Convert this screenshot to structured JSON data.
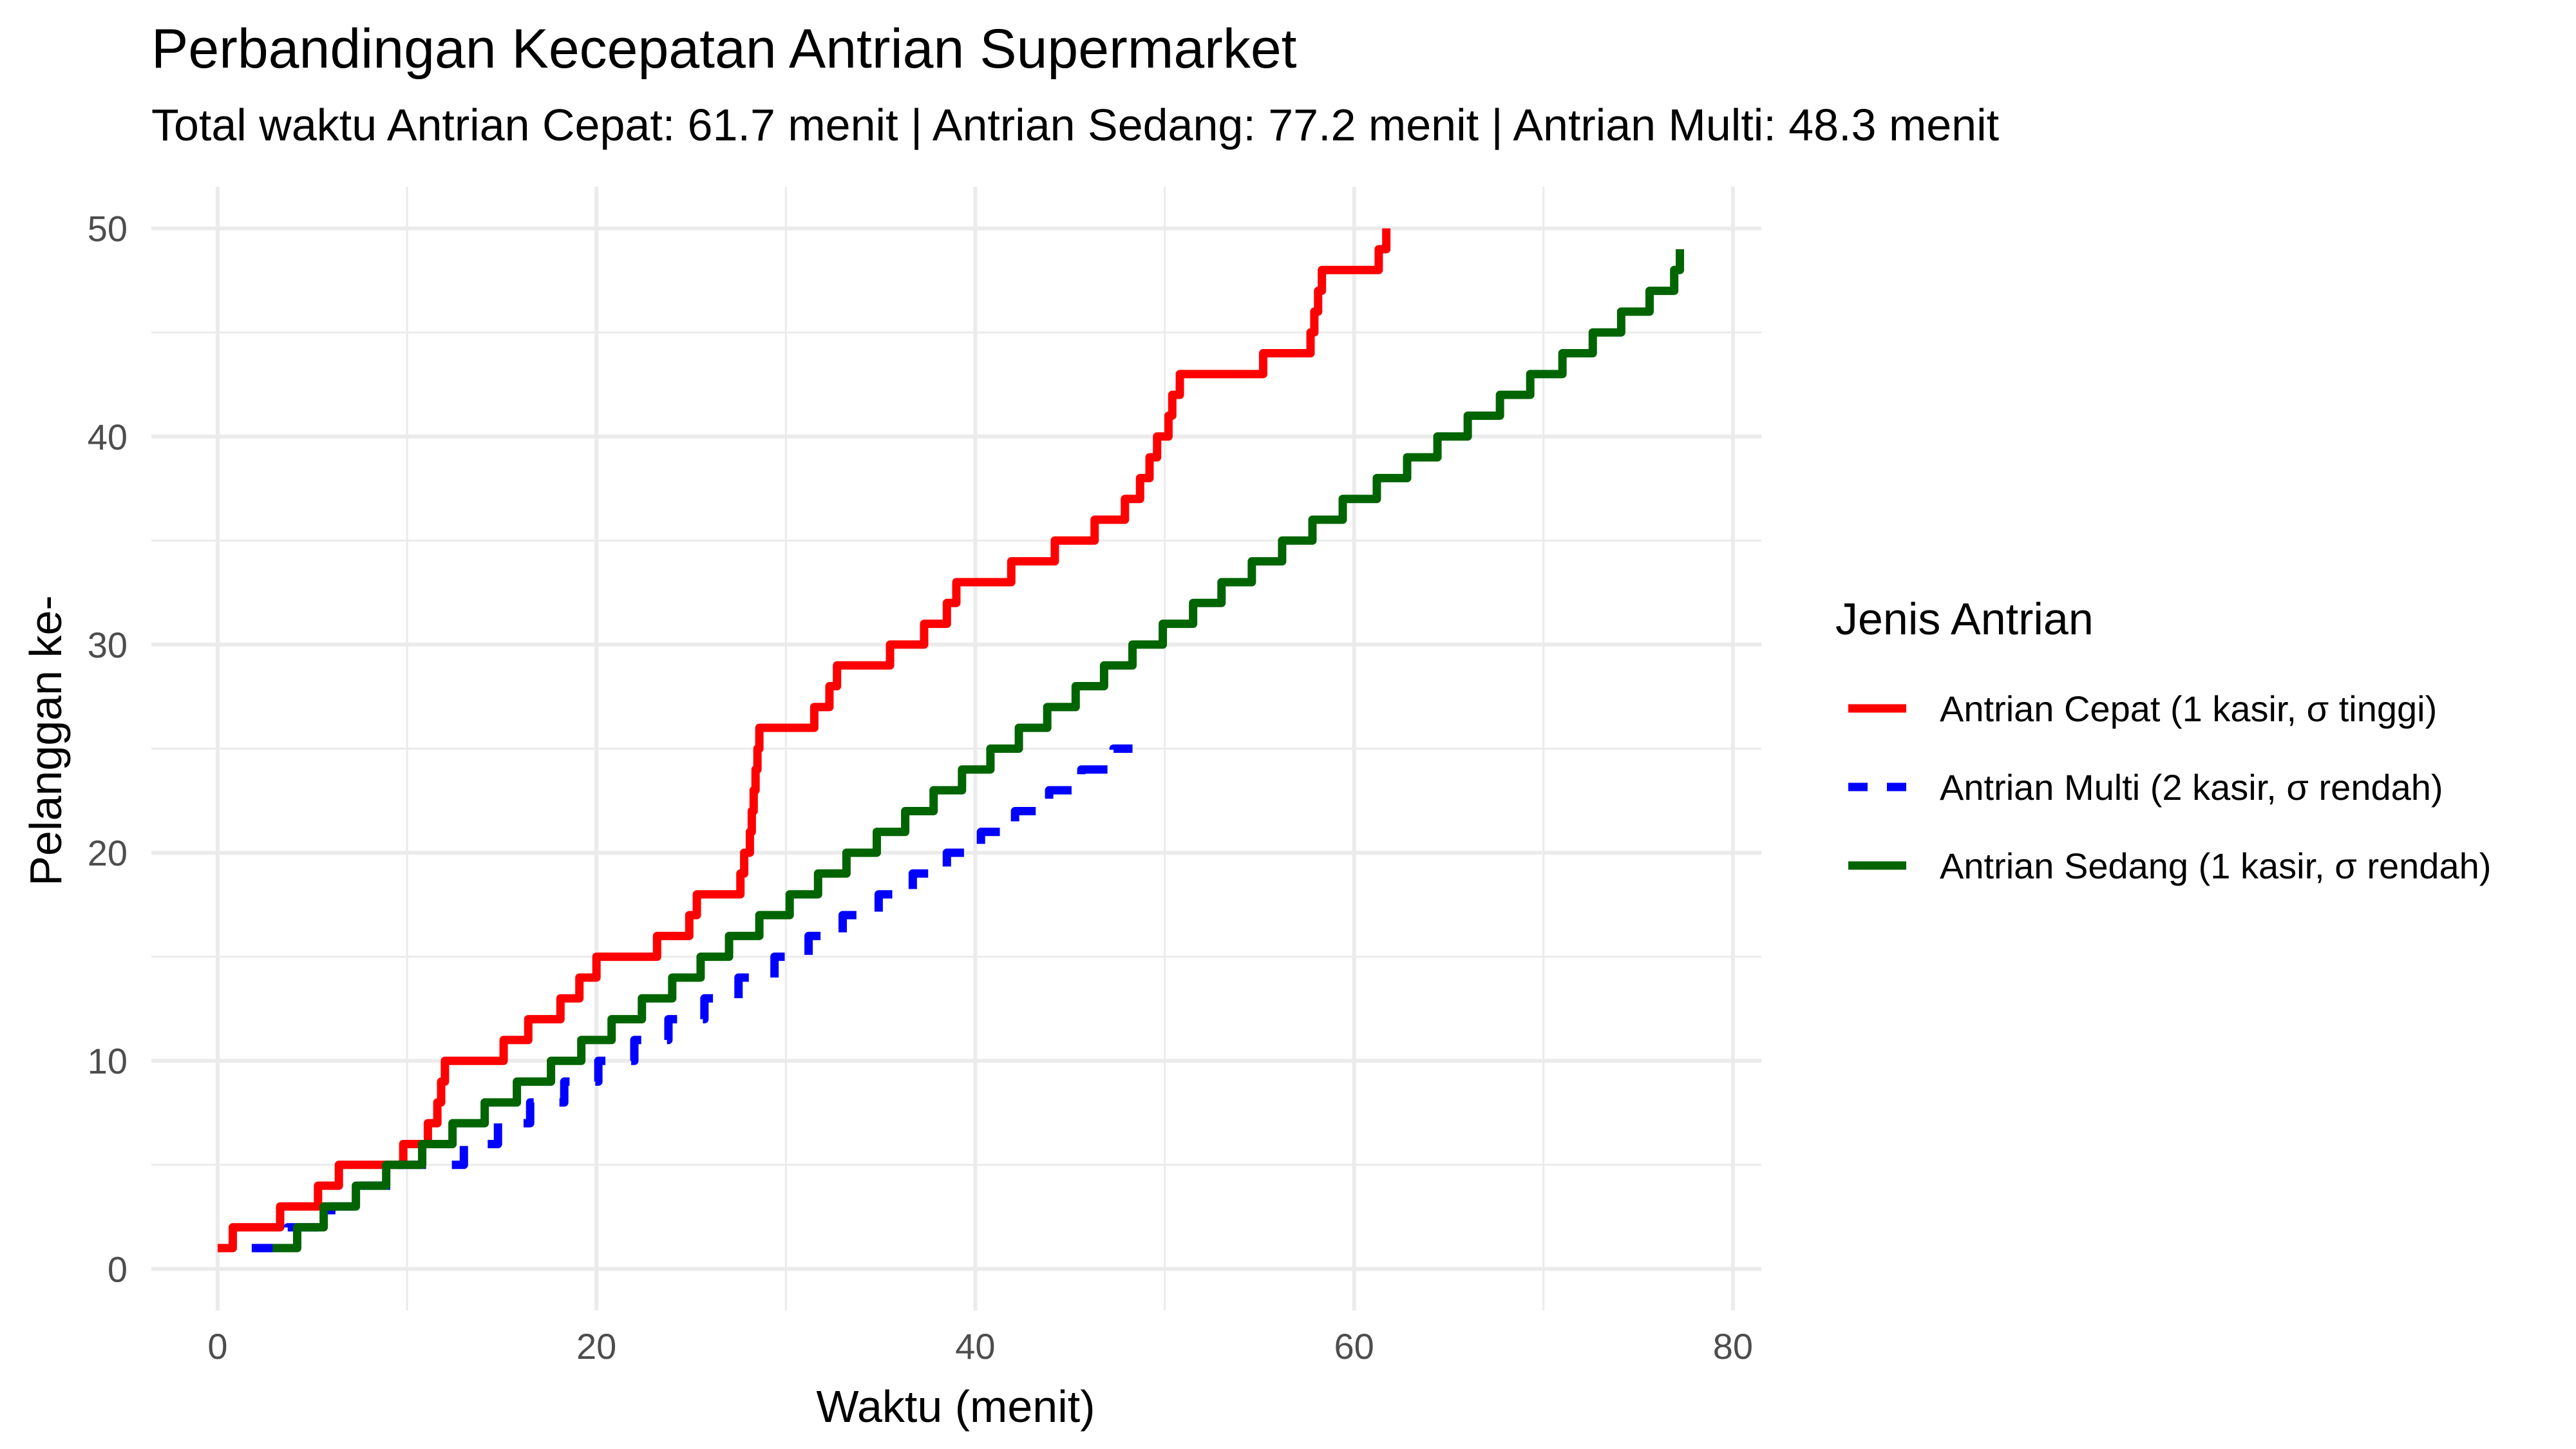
{
  "chart_data": {
    "type": "line",
    "title": "Perbandingan Kecepatan Antrian Supermarket",
    "subtitle": "Total waktu Antrian Cepat: 61.7 menit | Antrian Sedang: 77.2 menit | Antrian Multi: 48.3 menit",
    "xlabel": "Waktu (menit)",
    "ylabel": "Pelanggan ke-",
    "xlim": [
      -3.5,
      81.5
    ],
    "ylim": [
      -2,
      52
    ],
    "x_ticks": [
      "0",
      "20",
      "40",
      "60",
      "80"
    ],
    "y_ticks": [
      "0",
      "10",
      "20",
      "30",
      "40",
      "50"
    ],
    "grid": true,
    "legend": {
      "title": "Jenis Antrian",
      "position": "right",
      "entries": [
        "Antrian Cepat (1 kasir, σ tinggi)",
        "Antrian Multi (2 kasir, σ rendah)",
        "Antrian Sedang (1 kasir, σ rendah)"
      ]
    },
    "step": "hv",
    "series": [
      {
        "name": "Antrian Cepat (1 kasir, σ tinggi)",
        "color": "#ff0000",
        "linetype": "solid",
        "x": [
          0,
          0.8,
          3.3,
          5.3,
          6.4,
          9.8,
          11.1,
          11.6,
          11.8,
          12.0,
          12.2,
          12.4,
          15.1,
          16.4,
          18.1,
          19.1,
          20.0,
          22.9,
          23.2,
          24.9,
          25.3,
          27.6,
          27.8,
          28.1,
          28.2,
          28.3,
          28.4,
          28.5,
          28.6,
          31.5,
          32.3,
          32.7,
          35.5,
          37.3,
          38.5,
          39.0,
          41.9,
          44.2,
          46.3,
          47.9,
          48.7,
          49.2,
          49.6,
          50.2,
          50.4,
          50.8,
          51.3,
          55.2,
          57.7,
          57.9,
          58.1,
          58.3,
          58.6,
          61.3,
          61.7
        ],
        "y": [
          1,
          2,
          3,
          4,
          5,
          6,
          7,
          8,
          9,
          10,
          10,
          10,
          11,
          12,
          13,
          14,
          15,
          15,
          16,
          17,
          18,
          19,
          20,
          21,
          22,
          23,
          24,
          25,
          26,
          27,
          28,
          29,
          30,
          31,
          32,
          33,
          34,
          35,
          36,
          37,
          38,
          39,
          40,
          41,
          42,
          43,
          43,
          44,
          45,
          46,
          47,
          48,
          48,
          49,
          50
        ]
      },
      {
        "name": "Antrian Multi (2 kasir, σ rendah)",
        "color": "#0000ff",
        "linetype": "dashed",
        "x": [
          1.8,
          3.7,
          6.0,
          7.6,
          9.5,
          11.3,
          13.0,
          14.8,
          16.5,
          18.3,
          20.1,
          22.0,
          23.8,
          25.7,
          27.5,
          29.4,
          31.2,
          33.0,
          34.9,
          36.7,
          38.5,
          40.3,
          42.1,
          43.9,
          45.6,
          47.3,
          48.3
        ],
        "y": [
          1,
          2,
          3,
          4,
          5,
          5,
          6,
          7,
          8,
          9,
          10,
          11,
          12,
          13,
          14,
          15,
          16,
          17,
          18,
          19,
          20,
          21,
          22,
          23,
          24,
          25,
          25
        ]
      },
      {
        "name": "Antrian Sedang (1 kasir, σ rendah)",
        "color": "#006400",
        "linetype": "solid",
        "x": [
          2.9,
          4.2,
          5.6,
          7.3,
          8.9,
          10.8,
          12.4,
          14.1,
          15.8,
          17.6,
          19.2,
          20.8,
          22.4,
          24.0,
          25.5,
          27.0,
          28.6,
          30.2,
          31.7,
          33.2,
          34.8,
          36.3,
          37.8,
          39.3,
          40.8,
          42.3,
          43.8,
          45.3,
          46.8,
          48.3,
          49.9,
          51.5,
          53.0,
          54.6,
          56.2,
          57.8,
          59.4,
          61.2,
          62.8,
          64.4,
          66.0,
          67.7,
          69.3,
          71.0,
          72.6,
          74.1,
          75.6,
          76.9,
          77.2
        ],
        "y": [
          1,
          2,
          3,
          4,
          5,
          6,
          7,
          8,
          9,
          10,
          11,
          12,
          13,
          14,
          15,
          16,
          17,
          18,
          19,
          20,
          21,
          22,
          23,
          24,
          25,
          26,
          27,
          28,
          29,
          30,
          31,
          32,
          33,
          34,
          35,
          36,
          37,
          38,
          39,
          40,
          41,
          42,
          43,
          44,
          45,
          46,
          47,
          48,
          49
        ]
      }
    ]
  }
}
